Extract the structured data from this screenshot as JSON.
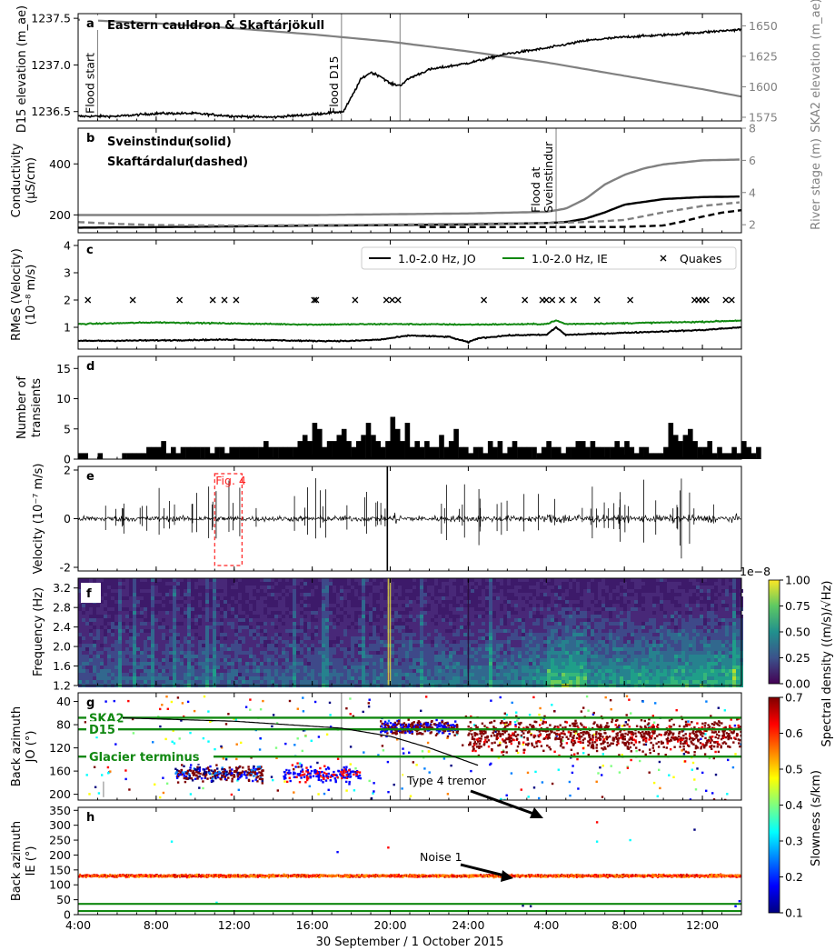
{
  "chart_data": [
    {
      "panel": "a",
      "type": "line",
      "title": "Eastern cauldron & Skaftárjökull",
      "ylabel": "D15 elevation (m_ae)",
      "ylim": [
        1236.4,
        1237.55
      ],
      "yticks": [
        1236.5,
        1237.0,
        1237.5
      ],
      "ylabel_right": "SKA2 elevation (m_ae)",
      "ylim_right": [
        1572,
        1660
      ],
      "yticks_right": [
        1575,
        1600,
        1625,
        1650
      ],
      "x_unit": "hours since 30 Sep 00:00",
      "series": [
        {
          "name": "D15",
          "axis": "left",
          "color": "#000000",
          "x": [
            4,
            6,
            8,
            10,
            12,
            14,
            16,
            17.6,
            18,
            18.5,
            19,
            19.5,
            20,
            20.5,
            21,
            22,
            24,
            26,
            28,
            30,
            32,
            34,
            36,
            38
          ],
          "y": [
            1236.45,
            1236.45,
            1236.48,
            1236.48,
            1236.45,
            1236.44,
            1236.47,
            1236.5,
            1236.65,
            1236.85,
            1236.92,
            1236.88,
            1236.8,
            1236.78,
            1236.86,
            1236.95,
            1237.02,
            1237.12,
            1237.18,
            1237.26,
            1237.3,
            1237.32,
            1237.35,
            1237.38
          ]
        },
        {
          "name": "SKA2",
          "axis": "right",
          "color": "#808080",
          "x": [
            4,
            8,
            12,
            16,
            20,
            24,
            28,
            32,
            36,
            38
          ],
          "y": [
            1655,
            1652,
            1648,
            1643,
            1637,
            1629,
            1620,
            1609,
            1598,
            1592
          ]
        }
      ],
      "vlines": [
        {
          "x": 5,
          "label": "Flood start"
        },
        {
          "x": 17.5,
          "label": "Flood D15"
        },
        {
          "x": 20.5,
          "label": ""
        }
      ]
    },
    {
      "panel": "b",
      "type": "line",
      "ylabel": "Conductivity (µS/cm)",
      "ylim": [
        130,
        540
      ],
      "yticks": [
        200,
        400
      ],
      "ylabel_right": "River stage (m)",
      "ylim_right": [
        1.5,
        8
      ],
      "yticks_right": [
        2,
        4,
        6,
        8
      ],
      "legend_text": [
        {
          "station": "Sveinstindur",
          "style": "(solid)"
        },
        {
          "station": "Skaftárdalur",
          "style": "(dashed)"
        }
      ],
      "series": [
        {
          "name": "Sveinstindur conductivity",
          "axis": "left",
          "color": "#000000",
          "dash": false,
          "x": [
            4,
            8,
            12,
            16,
            20,
            24,
            28,
            29,
            30,
            31,
            32,
            34,
            36,
            38
          ],
          "y": [
            150,
            152,
            155,
            158,
            160,
            163,
            168,
            172,
            185,
            210,
            240,
            262,
            270,
            272
          ]
        },
        {
          "name": "Skaftárdalur conductivity",
          "axis": "left",
          "color": "#808080",
          "dash": true,
          "x": [
            4,
            6,
            8,
            12,
            16,
            20,
            24,
            28,
            30,
            32,
            34,
            36,
            38
          ],
          "y": [
            172,
            165,
            160,
            158,
            160,
            162,
            165,
            168,
            172,
            180,
            210,
            235,
            250
          ]
        },
        {
          "name": "Sveinstindur stage",
          "axis": "right",
          "color": "#808080",
          "dash": false,
          "x": [
            4,
            8,
            12,
            16,
            20,
            24,
            28,
            29,
            30,
            31,
            32,
            33,
            34,
            36,
            38
          ],
          "y": [
            2.6,
            2.6,
            2.6,
            2.6,
            2.65,
            2.7,
            2.8,
            3.0,
            3.6,
            4.5,
            5.1,
            5.5,
            5.75,
            6.0,
            6.05
          ]
        },
        {
          "name": "Skaftárdalur stage",
          "axis": "right",
          "color": "#000000",
          "dash": true,
          "x": [
            21.5,
            24,
            28,
            32,
            34,
            35,
            36,
            37,
            38
          ],
          "y": [
            1.85,
            1.85,
            1.85,
            1.86,
            1.95,
            2.2,
            2.5,
            2.75,
            2.9
          ]
        }
      ],
      "vlines": [
        {
          "x": 28.5,
          "label": "Flood at Sveinstindur"
        }
      ]
    },
    {
      "panel": "c",
      "type": "line",
      "ylabel": "RMeS (Velocity) (10⁻⁸ m/s)",
      "ylim": [
        0.2,
        4.2
      ],
      "yticks": [
        1,
        2,
        3,
        4
      ],
      "legend": [
        "1.0-2.0 Hz, JO",
        "1.0-2.0 Hz, IE",
        "Quakes"
      ],
      "series": [
        {
          "name": "1.0-2.0 Hz, JO",
          "color": "#000000",
          "x": [
            4,
            8,
            12,
            16,
            18,
            19.5,
            20,
            21,
            23,
            24,
            24.5,
            26,
            27,
            28,
            28.5,
            29,
            30,
            32,
            34,
            36,
            38
          ],
          "y": [
            0.5,
            0.52,
            0.55,
            0.5,
            0.5,
            0.55,
            0.6,
            0.7,
            0.65,
            0.45,
            0.6,
            0.7,
            0.72,
            0.72,
            1.0,
            0.72,
            0.75,
            0.8,
            0.85,
            0.9,
            1.0
          ]
        },
        {
          "name": "1.0-2.0 Hz, IE",
          "color": "#118811",
          "x": [
            4,
            8,
            12,
            16,
            20,
            24,
            28,
            28.5,
            29,
            32,
            36,
            38
          ],
          "y": [
            1.12,
            1.18,
            1.14,
            1.1,
            1.12,
            1.1,
            1.12,
            1.25,
            1.12,
            1.15,
            1.2,
            1.25
          ]
        },
        {
          "name": "Quakes",
          "marker": "x",
          "color": "#000000",
          "x": [
            4.5,
            6.8,
            9.2,
            10.9,
            11.5,
            12.1,
            16.1,
            16.2,
            18.2,
            19.8,
            20.1,
            20.4,
            24.8,
            26.9,
            27.8,
            28.0,
            28.3,
            28.8,
            29.4,
            30.6,
            32.3,
            35.6,
            35.8,
            36.0,
            36.2,
            37.2,
            37.5
          ],
          "y": [
            2,
            2,
            2,
            2,
            2,
            2,
            2,
            2,
            2,
            2,
            2,
            2,
            2,
            2,
            2,
            2,
            2,
            2,
            2,
            2,
            2,
            2,
            2,
            2,
            2,
            2,
            2
          ]
        }
      ]
    },
    {
      "panel": "d",
      "type": "bar",
      "ylabel": "Number of transients",
      "ylim": [
        0,
        17
      ],
      "yticks": [
        0,
        5,
        10,
        15
      ],
      "bin_hours": 0.25,
      "values_by_hour": [
        {
          "x": 4,
          "v": [
            1,
            1,
            0,
            0
          ]
        },
        {
          "x": 5,
          "v": [
            1,
            0,
            0,
            0
          ]
        },
        {
          "x": 6,
          "v": [
            0,
            1,
            1,
            1
          ]
        },
        {
          "x": 7,
          "v": [
            1,
            1,
            2,
            2
          ]
        },
        {
          "x": 8,
          "v": [
            2,
            3,
            1,
            2
          ]
        },
        {
          "x": 9,
          "v": [
            1,
            2,
            2,
            2
          ]
        },
        {
          "x": 10,
          "v": [
            2,
            2,
            2,
            1
          ]
        },
        {
          "x": 11,
          "v": [
            2,
            2,
            1,
            2
          ]
        },
        {
          "x": 12,
          "v": [
            2,
            2,
            2,
            2
          ]
        },
        {
          "x": 13,
          "v": [
            2,
            2,
            3,
            2
          ]
        },
        {
          "x": 14,
          "v": [
            2,
            2,
            2,
            2
          ]
        },
        {
          "x": 15,
          "v": [
            2,
            3,
            4,
            3
          ]
        },
        {
          "x": 16,
          "v": [
            6,
            5,
            2,
            3
          ]
        },
        {
          "x": 17,
          "v": [
            3,
            4,
            5,
            3
          ]
        },
        {
          "x": 18,
          "v": [
            2,
            3,
            4,
            6
          ]
        },
        {
          "x": 19,
          "v": [
            4,
            3,
            2,
            3
          ]
        },
        {
          "x": 20,
          "v": [
            7,
            5,
            3,
            6
          ]
        },
        {
          "x": 21,
          "v": [
            2,
            3,
            2,
            3
          ]
        },
        {
          "x": 22,
          "v": [
            2,
            2,
            4,
            2
          ]
        },
        {
          "x": 23,
          "v": [
            3,
            5,
            2,
            2
          ]
        },
        {
          "x": 24,
          "v": [
            1,
            2,
            2,
            1
          ]
        },
        {
          "x": 25,
          "v": [
            3,
            2,
            3,
            1
          ]
        },
        {
          "x": 26,
          "v": [
            2,
            3,
            2,
            2
          ]
        },
        {
          "x": 27,
          "v": [
            2,
            2,
            1,
            2
          ]
        },
        {
          "x": 28,
          "v": [
            3,
            2,
            2,
            1
          ]
        },
        {
          "x": 29,
          "v": [
            2,
            2,
            3,
            3
          ]
        },
        {
          "x": 30,
          "v": [
            2,
            3,
            2,
            2
          ]
        },
        {
          "x": 31,
          "v": [
            2,
            2,
            3,
            2
          ]
        },
        {
          "x": 32,
          "v": [
            3,
            2,
            1,
            2
          ]
        },
        {
          "x": 33,
          "v": [
            2,
            1,
            1,
            1
          ]
        },
        {
          "x": 34,
          "v": [
            2,
            6,
            4,
            3
          ]
        },
        {
          "x": 35,
          "v": [
            4,
            5,
            3,
            2
          ]
        },
        {
          "x": 36,
          "v": [
            2,
            3,
            1,
            2
          ]
        },
        {
          "x": 37,
          "v": [
            1,
            1,
            2,
            1
          ]
        },
        {
          "x": 38,
          "v": [
            3,
            2,
            1,
            2
          ]
        }
      ]
    },
    {
      "panel": "e",
      "type": "line",
      "ylabel": "Velocity (10⁻⁷ m/s)",
      "ylim": [
        -2.15,
        2.15
      ],
      "yticks": [
        -2,
        0,
        2
      ],
      "box_label": "Fig. 4",
      "box_x": [
        11,
        12.4
      ]
    },
    {
      "panel": "f",
      "type": "heatmap",
      "ylabel": "Frequency (Hz)",
      "ylim": [
        1.2,
        3.4
      ],
      "yticks": [
        1.2,
        1.6,
        2.0,
        2.4,
        2.8,
        3.2
      ],
      "colorbar_label": "Spectral density ((m/s)/√Hz)",
      "colorbar_scale": "1e−8",
      "colorbar_ticks": [
        "0.00",
        "0.25",
        "0.50",
        "0.75",
        "1.00"
      ],
      "colorbar_colors": [
        "#440154",
        "#3b528b",
        "#21908d",
        "#5dc863",
        "#fde725"
      ]
    },
    {
      "panel": "g",
      "type": "scatter",
      "ylabel": "Back azimuth JO (°)",
      "ylim": [
        210,
        25
      ],
      "yticks": [
        40,
        80,
        120,
        160,
        200
      ],
      "hlines": [
        {
          "y": 68,
          "label": "SKA2"
        },
        {
          "y": 88,
          "label": "D15"
        },
        {
          "y": 135,
          "label": "Glacier terminus"
        }
      ],
      "annotation": "Type 4 tremor",
      "curve_x": [
        6,
        12,
        17.5,
        20,
        22,
        24.5
      ],
      "curve_y": [
        68,
        74,
        86,
        100,
        120,
        150
      ]
    },
    {
      "panel": "h",
      "type": "scatter",
      "ylabel": "Back azimuth IE (°)",
      "ylim": [
        0,
        360
      ],
      "yticks": [
        0,
        50,
        100,
        150,
        200,
        250,
        300,
        350
      ],
      "band_y": 130,
      "hlines_y": [
        12,
        36
      ],
      "annotation": "Noise 1",
      "colorbar_label": "Slowness (s/km)",
      "colorbar_ticks": [
        "0.1",
        "0.2",
        "0.3",
        "0.4",
        "0.5",
        "0.6",
        "0.7"
      ],
      "colorbar_colors": [
        "#00007f",
        "#0000ff",
        "#007fff",
        "#00ffff",
        "#7fff7f",
        "#ffff00",
        "#ff7f00",
        "#ff0000",
        "#7f0000"
      ]
    }
  ],
  "x_axis": {
    "xlim": [
      4,
      38
    ],
    "tick_x": [
      4,
      8,
      12,
      16,
      20,
      24,
      28,
      32,
      36
    ],
    "tick_labels": [
      "4:00",
      "8:00",
      "12:00",
      "16:00",
      "20:00",
      "24:00",
      "4:00",
      "8:00",
      "12:00"
    ],
    "xlabel": "30 September / 1 October 2015"
  },
  "panel_letters": [
    "a",
    "b",
    "c",
    "d",
    "e",
    "f",
    "g",
    "h"
  ]
}
